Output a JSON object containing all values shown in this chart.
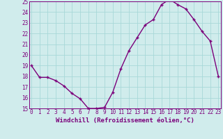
{
  "x": [
    0,
    1,
    2,
    3,
    4,
    5,
    6,
    7,
    8,
    9,
    10,
    11,
    12,
    13,
    14,
    15,
    16,
    17,
    18,
    19,
    20,
    21,
    22,
    23
  ],
  "y": [
    19.0,
    17.9,
    17.9,
    17.6,
    17.1,
    16.4,
    15.9,
    15.0,
    15.0,
    15.1,
    16.5,
    18.7,
    20.4,
    21.6,
    22.8,
    23.3,
    24.7,
    25.2,
    24.7,
    24.3,
    23.3,
    22.2,
    21.3,
    18.0
  ],
  "line_color": "#7b007b",
  "marker": "+",
  "bg_color": "#d0ecec",
  "grid_color": "#a8d8d8",
  "xlabel": "Windchill (Refroidissement éolien,°C)",
  "ylim": [
    15,
    25
  ],
  "xlim": [
    -0.3,
    23.3
  ],
  "yticks": [
    15,
    16,
    17,
    18,
    19,
    20,
    21,
    22,
    23,
    24,
    25
  ],
  "xticks": [
    0,
    1,
    2,
    3,
    4,
    5,
    6,
    7,
    8,
    9,
    10,
    11,
    12,
    13,
    14,
    15,
    16,
    17,
    18,
    19,
    20,
    21,
    22,
    23
  ],
  "tick_fontsize": 5.5,
  "xlabel_fontsize": 6.5,
  "linewidth": 1.0,
  "markersize": 3.5,
  "markeredgewidth": 1.0
}
